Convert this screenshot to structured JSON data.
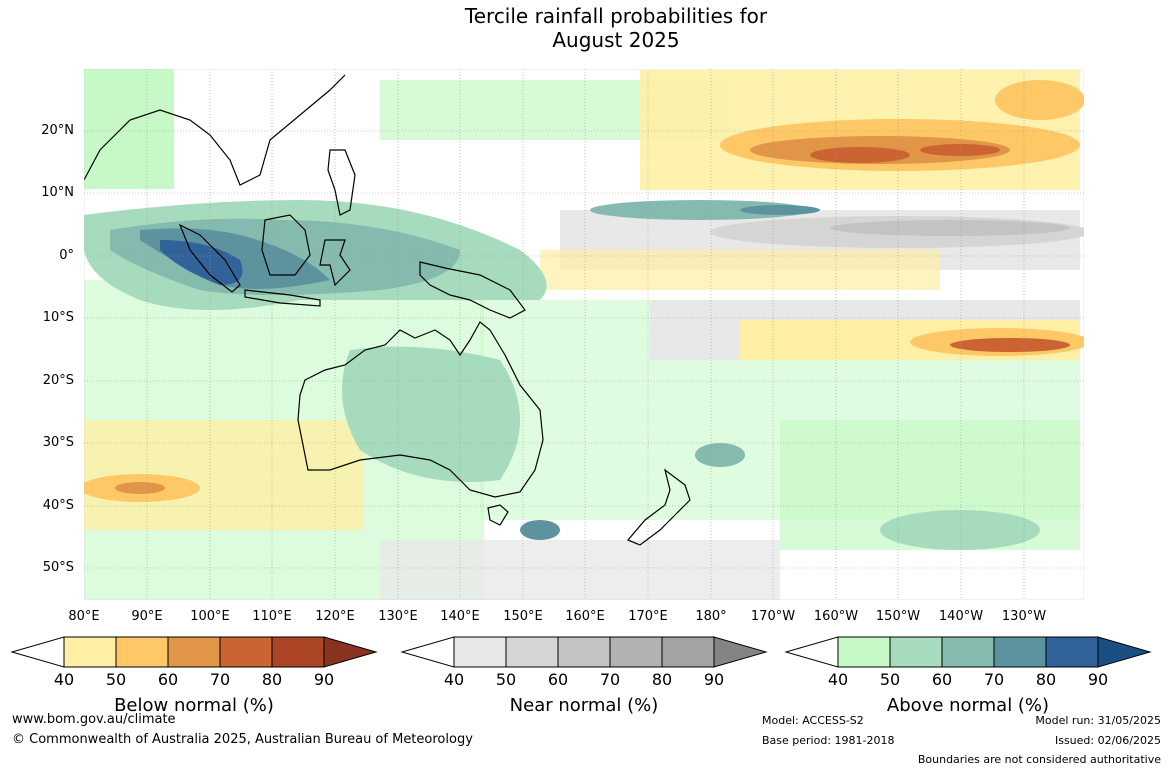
{
  "title_line1": "Tercile rainfall probabilities for",
  "title_line2": "August 2025",
  "lat_labels": [
    "20°N",
    "10°N",
    "0°",
    "10°S",
    "20°S",
    "30°S",
    "40°S",
    "50°S"
  ],
  "lon_labels": [
    "80°E",
    "90°E",
    "100°E",
    "110°E",
    "120°E",
    "130°E",
    "140°E",
    "150°E",
    "160°E",
    "170°E",
    "180°",
    "170°W",
    "160°W",
    "150°W",
    "140°W",
    "130°W"
  ],
  "legends": [
    {
      "title": "Below normal (%)",
      "colors": [
        "#fff0a5",
        "#fdc865",
        "#e09547",
        "#cb6432",
        "#ab4526",
        "#8a3320"
      ]
    },
    {
      "title": "Near normal (%)",
      "colors": [
        "#e8e8e8",
        "#d5d5d5",
        "#c3c3c3",
        "#b2b2b2",
        "#a3a3a3",
        "#848484"
      ]
    },
    {
      "title": "Above normal (%)",
      "colors": [
        "#c6f9c6",
        "#a7dbbd",
        "#85baae",
        "#5c939f",
        "#31629a",
        "#1b4f83"
      ]
    }
  ],
  "ticks": [
    "40",
    "50",
    "60",
    "70",
    "80",
    "90"
  ],
  "footer": {
    "url": "www.bom.gov.au/climate",
    "copyright": "© Commonwealth of Australia 2025, Australian Bureau of Meteorology",
    "model": "Model: ACCESS-S2",
    "base": "Base period: 1981-2018",
    "run": "Model run: 31/05/2025",
    "issued": "Issued: 02/06/2025",
    "boundaries": "Boundaries are not considered authoritative"
  }
}
